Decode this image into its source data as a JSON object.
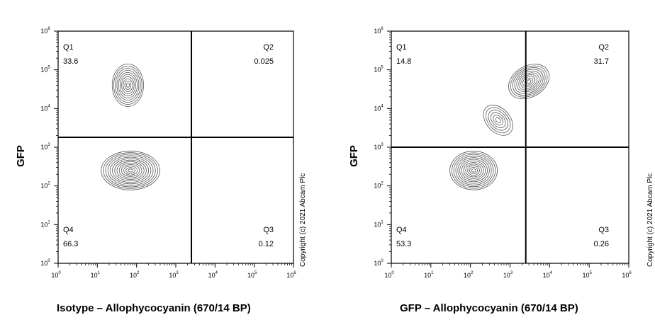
{
  "chart_data": [
    {
      "type": "contour",
      "xlabel": "Isotype – Allophycocyanin (670/14 BP)",
      "ylabel": "GFP",
      "xscale": "log",
      "yscale": "log",
      "xlim": [
        1,
        1000000
      ],
      "ylim": [
        1,
        1000000
      ],
      "x_ticks": [
        {
          "base": "10",
          "exp": "0"
        },
        {
          "base": "10",
          "exp": "1"
        },
        {
          "base": "10",
          "exp": "2"
        },
        {
          "base": "10",
          "exp": "3"
        },
        {
          "base": "10",
          "exp": "4"
        },
        {
          "base": "10",
          "exp": "5"
        },
        {
          "base": "10",
          "exp": "6"
        }
      ],
      "y_ticks": [
        {
          "base": "10",
          "exp": "0"
        },
        {
          "base": "10",
          "exp": "1"
        },
        {
          "base": "10",
          "exp": "2"
        },
        {
          "base": "10",
          "exp": "3"
        },
        {
          "base": "10",
          "exp": "4"
        },
        {
          "base": "10",
          "exp": "5"
        },
        {
          "base": "10",
          "exp": "6"
        }
      ],
      "gate": {
        "x": 2500,
        "y": 1800
      },
      "quadrants": [
        {
          "name": "Q1",
          "value": "33.6"
        },
        {
          "name": "Q2",
          "value": "0.025"
        },
        {
          "name": "Q3",
          "value": "0.12"
        },
        {
          "name": "Q4",
          "value": "66.3"
        }
      ],
      "clusters": [
        {
          "center_x": 60,
          "center_y": 40000,
          "spread_x": 0.4,
          "spread_y": 0.55,
          "levels": 10
        },
        {
          "center_x": 70,
          "center_y": 250,
          "spread_x": 0.75,
          "spread_y": 0.5,
          "levels": 13
        }
      ],
      "copyright": "Copyright (c) 2021 Abcam Plc"
    },
    {
      "type": "contour",
      "xlabel": "GFP – Allophycocyanin (670/14 BP)",
      "ylabel": "GFP",
      "xscale": "log",
      "yscale": "log",
      "xlim": [
        1,
        1000000
      ],
      "ylim": [
        1,
        1000000
      ],
      "x_ticks": [
        {
          "base": "10",
          "exp": "0"
        },
        {
          "base": "10",
          "exp": "1"
        },
        {
          "base": "10",
          "exp": "2"
        },
        {
          "base": "10",
          "exp": "3"
        },
        {
          "base": "10",
          "exp": "4"
        },
        {
          "base": "10",
          "exp": "5"
        },
        {
          "base": "10",
          "exp": "6"
        }
      ],
      "y_ticks": [
        {
          "base": "10",
          "exp": "0"
        },
        {
          "base": "10",
          "exp": "1"
        },
        {
          "base": "10",
          "exp": "2"
        },
        {
          "base": "10",
          "exp": "3"
        },
        {
          "base": "10",
          "exp": "4"
        },
        {
          "base": "10",
          "exp": "5"
        },
        {
          "base": "10",
          "exp": "6"
        }
      ],
      "gate": {
        "x": 2500,
        "y": 1000
      },
      "quadrants": [
        {
          "name": "Q1",
          "value": "14.8"
        },
        {
          "name": "Q2",
          "value": "31.7"
        },
        {
          "name": "Q3",
          "value": "0.26"
        },
        {
          "name": "Q4",
          "value": "53.3"
        }
      ],
      "clusters": [
        {
          "center_x": 120,
          "center_y": 250,
          "spread_x": 0.6,
          "spread_y": 0.5,
          "levels": 12
        },
        {
          "center_x": 3000,
          "center_y": 50000,
          "spread_x": 0.55,
          "spread_y": 0.4,
          "levels": 10,
          "tilt": 0.6
        },
        {
          "center_x": 500,
          "center_y": 5000,
          "spread_x": 0.3,
          "spread_y": 0.45,
          "levels": 6,
          "tilt": 0.9
        }
      ],
      "copyright": "Copyright (c) 2021 Abcam Plc"
    }
  ]
}
